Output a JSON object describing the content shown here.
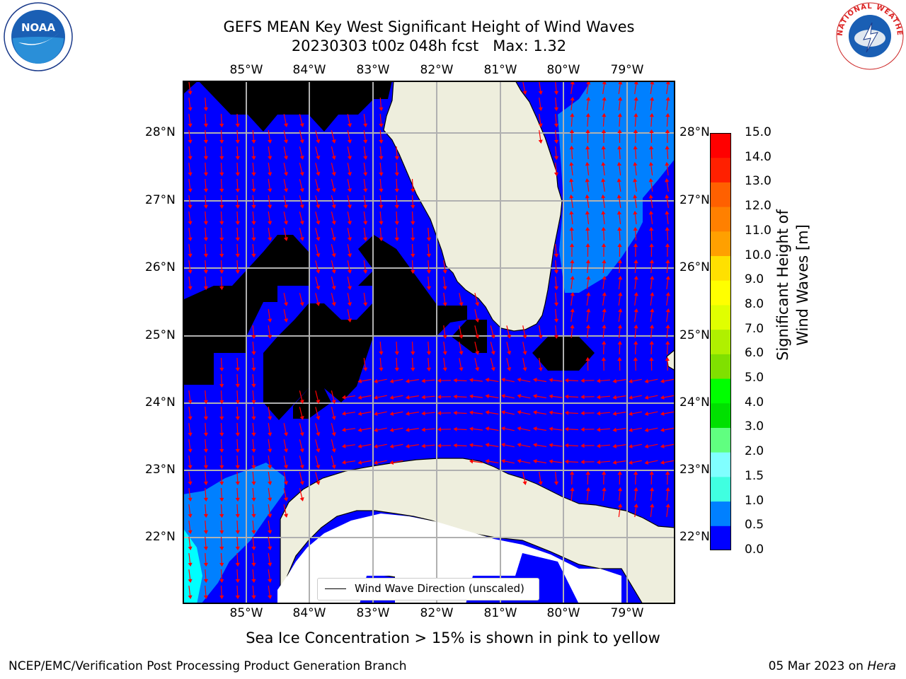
{
  "title": {
    "line1": "GEFS MEAN Key West Significant Height of Wind Waves",
    "line2": "20230303 t00z 048h fcst   Max: 1.32"
  },
  "map": {
    "lon_labels": [
      "85°W",
      "84°W",
      "83°W",
      "82°W",
      "81°W",
      "80°W",
      "79°W"
    ],
    "lat_labels": [
      "28°N",
      "27°N",
      "26°N",
      "25°N",
      "24°N",
      "23°N",
      "22°N"
    ],
    "legend": "Wind Wave Direction (unscaled)",
    "colors": {
      "land": "#eeeedd",
      "no_data": "#ffffff",
      "band_0_0_5": "#0000ff",
      "band_0_5_1_0": "#0080ff",
      "band_1_0_1_5": "#00ffff",
      "arrow": "#ff0000",
      "grid": "#b0b0b0"
    }
  },
  "colorbar": {
    "title": "Significant Height of Wind Waves [m]",
    "labels": [
      "15.0",
      "14.0",
      "13.0",
      "12.0",
      "11.0",
      "10.0",
      "9.0",
      "8.0",
      "7.0",
      "6.0",
      "5.0",
      "4.0",
      "3.0",
      "2.0",
      "1.5",
      "1.0",
      "0.5",
      "0.0"
    ],
    "colors": [
      "#0000ff",
      "#0080ff",
      "#00ffff",
      "#40ffe0",
      "#80ffff",
      "#a0fff0",
      "#60ff80",
      "#00e000",
      "#00ff00",
      "#40e000",
      "#80e000",
      "#b0f000",
      "#e0ff00",
      "#f0ff00",
      "#ffff00",
      "#ffe000",
      "#ffc000",
      "#ffa000",
      "#ff8000",
      "#ff6000",
      "#ff4000",
      "#ff2000",
      "#ff0000"
    ]
  },
  "footnote": "Sea Ice Concentration > 15% is shown in pink to yellow",
  "credits": {
    "left": "NCEP/EMC/Verification Post Processing Product Generation Branch",
    "right_date": "05 Mar 2023 on ",
    "right_system": "Hera"
  },
  "logos": {
    "noaa_text": "NOAA",
    "nws_text": "NATIONAL WEATHER SERVICE"
  }
}
